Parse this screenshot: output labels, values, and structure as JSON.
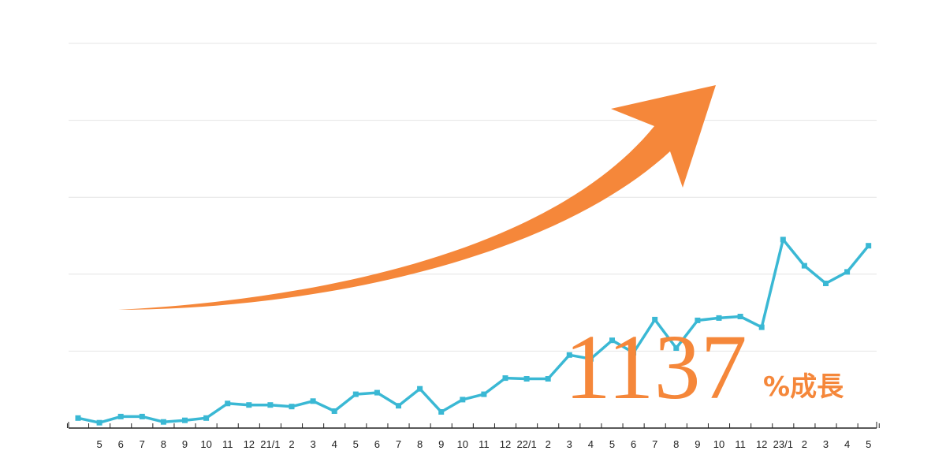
{
  "colors": {
    "line": "#3ab8d4",
    "arrow": "#f5873a",
    "annotation": "#f5873a",
    "grid": "#e4e4e4",
    "axis": "#222222"
  },
  "annotation": {
    "number": "1137",
    "suffix": "%成長"
  },
  "chart_data": {
    "type": "line",
    "title": "",
    "xlabel": "",
    "ylabel": "",
    "grid": true,
    "y_tick_labels_shown": false,
    "ylim": [
      0,
      500
    ],
    "categories": [
      "",
      "5",
      "6",
      "7",
      "8",
      "9",
      "10",
      "11",
      "12",
      "21/1",
      "2",
      "3",
      "4",
      "5",
      "6",
      "7",
      "8",
      "9",
      "10",
      "11",
      "12",
      "22/1",
      "2",
      "3",
      "4",
      "5",
      "6",
      "7",
      "8",
      "9",
      "10",
      "11",
      "12",
      "23/1",
      "2",
      "3",
      "4",
      "5"
    ],
    "series": [
      {
        "values": [
          13,
          7,
          15,
          15,
          8,
          10,
          13,
          32,
          30,
          30,
          28,
          35,
          22,
          44,
          46,
          29,
          51,
          21,
          37,
          44,
          65,
          64,
          64,
          95,
          90,
          114,
          98,
          141,
          104,
          140,
          143,
          145,
          131,
          245,
          211,
          188,
          203,
          237
        ]
      }
    ],
    "annotations": [
      {
        "text": "1137%成長",
        "kind": "growth-callout"
      },
      {
        "kind": "upward-trend-arrow"
      }
    ]
  }
}
